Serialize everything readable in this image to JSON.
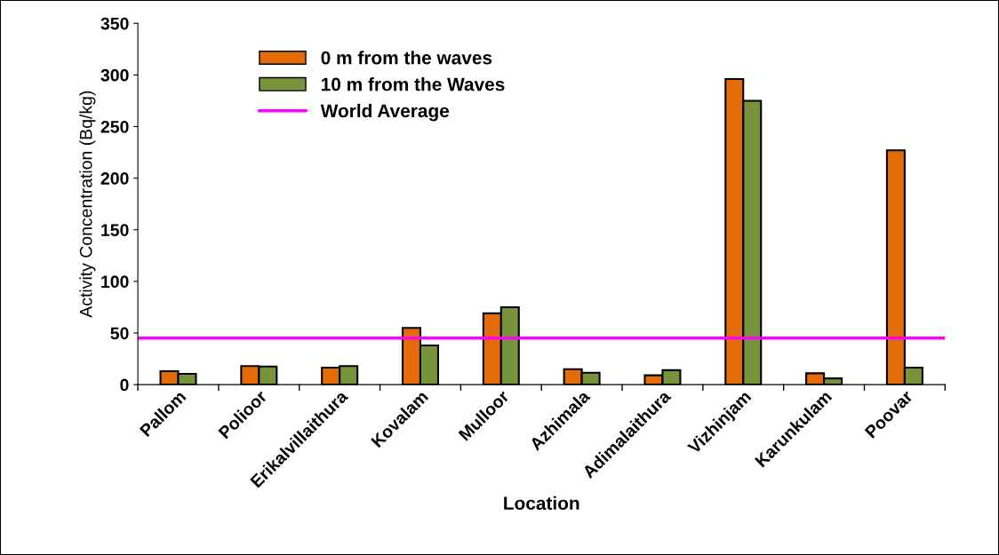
{
  "chart_data": {
    "type": "bar",
    "xlabel": "Location",
    "ylabel": "Activity Concentration (Bq/kg)",
    "categories": [
      "Pallom",
      "Polioor",
      "Erikalvillaithura",
      "Kovalam",
      "Mulloor",
      "Azhimala",
      "Adimalaithura",
      "Vizhinjam",
      "Karunkulam",
      "Poovar"
    ],
    "series": [
      {
        "name": "0 m from the waves",
        "color": "#e36c09",
        "values": [
          13,
          18,
          16.5,
          55,
          69,
          15,
          9,
          296,
          11,
          227
        ]
      },
      {
        "name": "10 m from the Waves",
        "color": "#77933c",
        "values": [
          10.5,
          17.5,
          18,
          38,
          75,
          11.5,
          14,
          275,
          6,
          16.5
        ]
      }
    ],
    "ref_lines": [
      {
        "axis": "y",
        "value": 45,
        "label": "World Average",
        "color": "#ff00ff"
      }
    ],
    "ylim": [
      0,
      350
    ],
    "yticks": [
      0,
      50,
      100,
      150,
      200,
      250,
      300,
      350
    ],
    "grid": false,
    "legend": "top left"
  }
}
